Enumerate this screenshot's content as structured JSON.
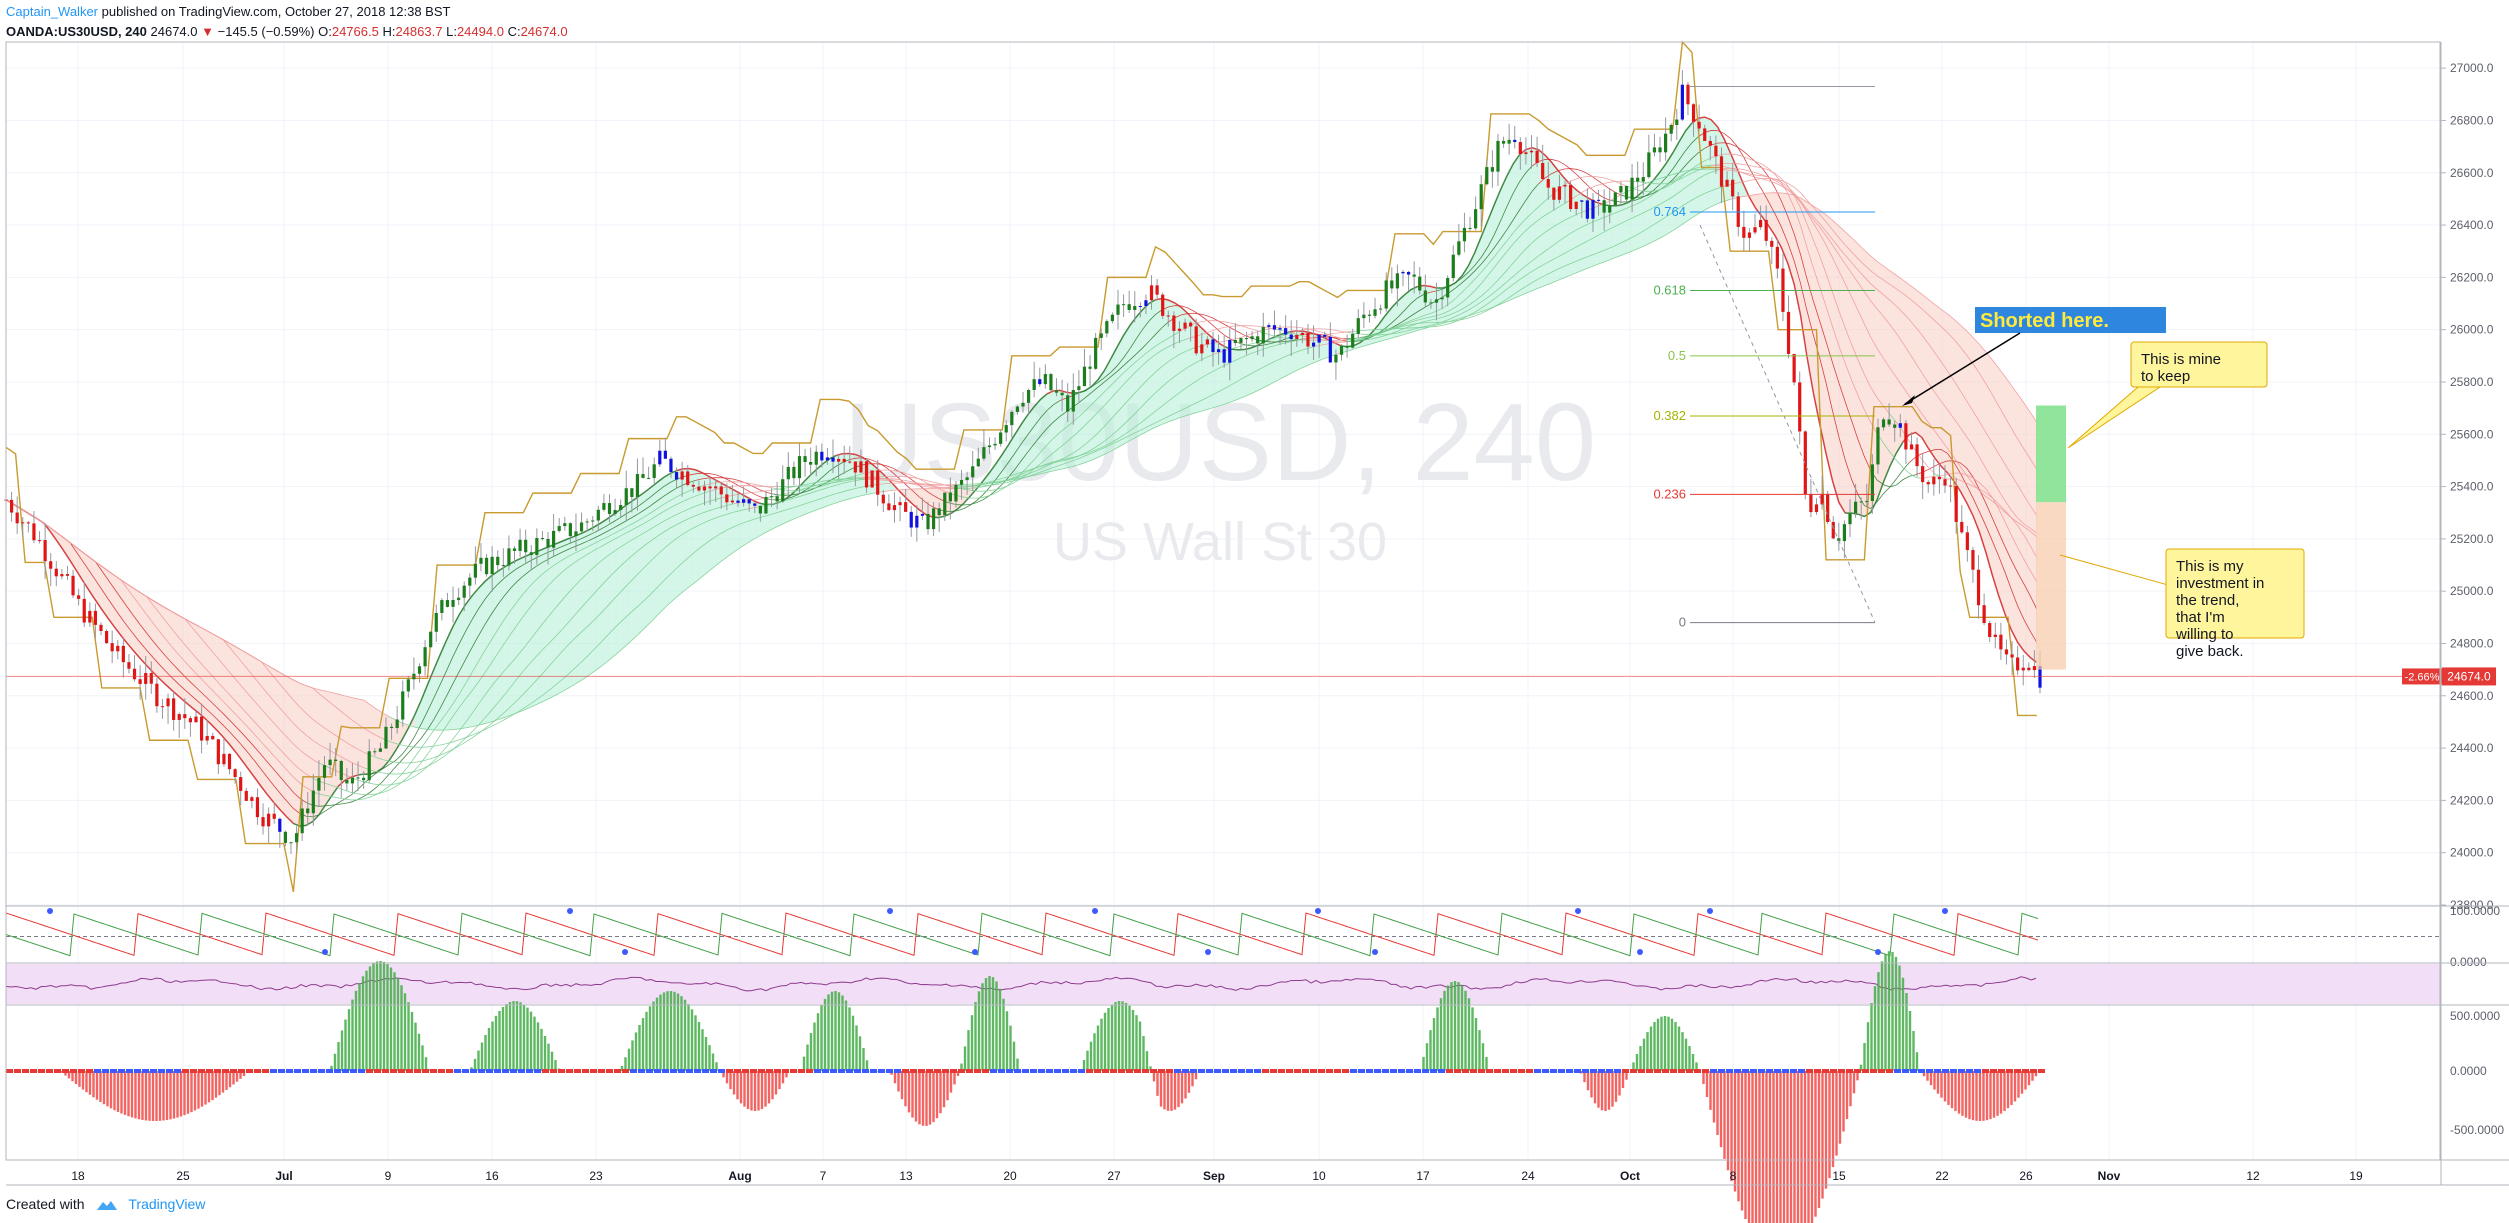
{
  "header": {
    "author": "Captain_Walker",
    "published": "published on TradingView.com, October 27, 2018 12:38 BST",
    "symbol": "OANDA:US30USD, 240",
    "last": "24674.0",
    "change": "−145.5 (−0.59%)",
    "o_label": "O:",
    "o_value": "24766.5",
    "h_label": "H:",
    "h_value": "24863.7",
    "l_label": "L:",
    "l_value": "24494.0",
    "c_label": "C:",
    "c_value": "24674.0"
  },
  "footer": {
    "created_with": "Created with",
    "brand": "TradingView"
  },
  "watermark": {
    "line1": "US30USD, 240",
    "line2": "US Wall St 30"
  },
  "chart_data": {
    "type": "candlestick",
    "ylim": [
      23800,
      27100
    ],
    "y_ticks": [
      23800,
      24000,
      24200,
      24400,
      24600,
      24800,
      25000,
      25200,
      25400,
      25600,
      25800,
      26000,
      26200,
      26400,
      26600,
      26800,
      27000
    ],
    "y_tick_labels": [
      "23800.0",
      "24000.0",
      "24200.0",
      "24400.0",
      "24600.0",
      "24800.0",
      "25000.0",
      "25200.0",
      "25400.0",
      "25600.0",
      "25800.0",
      "26000.0",
      "26200.0",
      "26400.0",
      "26600.0",
      "26800.0",
      "27000.0"
    ],
    "x_ticks": [
      {
        "label": "18",
        "bold": false
      },
      {
        "label": "25",
        "bold": false
      },
      {
        "label": "Jul",
        "bold": true
      },
      {
        "label": "9",
        "bold": false
      },
      {
        "label": "16",
        "bold": false
      },
      {
        "label": "23",
        "bold": false
      },
      {
        "label": "Aug",
        "bold": true
      },
      {
        "label": "7",
        "bold": false
      },
      {
        "label": "13",
        "bold": false
      },
      {
        "label": "20",
        "bold": false
      },
      {
        "label": "27",
        "bold": false
      },
      {
        "label": "Sep",
        "bold": true
      },
      {
        "label": "10",
        "bold": false
      },
      {
        "label": "17",
        "bold": false
      },
      {
        "label": "24",
        "bold": false
      },
      {
        "label": "Oct",
        "bold": true
      },
      {
        "label": "8",
        "bold": false
      },
      {
        "label": "15",
        "bold": false
      },
      {
        "label": "22",
        "bold": false
      },
      {
        "label": "26",
        "bold": false
      },
      {
        "label": "Nov",
        "bold": true
      },
      {
        "label": "12",
        "bold": false
      },
      {
        "label": "19",
        "bold": false
      }
    ],
    "price_path": [
      [
        0,
        25350
      ],
      [
        20,
        25200
      ],
      [
        45,
        24950
      ],
      [
        70,
        24750
      ],
      [
        95,
        24600
      ],
      [
        120,
        24480
      ],
      [
        140,
        24320
      ],
      [
        160,
        24150
      ],
      [
        180,
        24050
      ],
      [
        200,
        24350
      ],
      [
        215,
        24250
      ],
      [
        235,
        24400
      ],
      [
        250,
        24600
      ],
      [
        265,
        24850
      ],
      [
        280,
        25000
      ],
      [
        300,
        25100
      ],
      [
        320,
        25150
      ],
      [
        340,
        25200
      ],
      [
        360,
        25250
      ],
      [
        380,
        25350
      ],
      [
        395,
        25400
      ],
      [
        410,
        25500
      ],
      [
        425,
        25450
      ],
      [
        440,
        25400
      ],
      [
        455,
        25350
      ],
      [
        470,
        25300
      ],
      [
        485,
        25400
      ],
      [
        500,
        25500
      ],
      [
        515,
        25550
      ],
      [
        530,
        25500
      ],
      [
        545,
        25400
      ],
      [
        560,
        25300
      ],
      [
        575,
        25250
      ],
      [
        590,
        25350
      ],
      [
        605,
        25450
      ],
      [
        620,
        25600
      ],
      [
        635,
        25750
      ],
      [
        650,
        25800
      ],
      [
        665,
        25700
      ],
      [
        680,
        25900
      ],
      [
        700,
        26100
      ],
      [
        715,
        26150
      ],
      [
        730,
        26050
      ],
      [
        745,
        25950
      ],
      [
        760,
        25900
      ],
      [
        775,
        25950
      ],
      [
        790,
        26000
      ],
      [
        805,
        26000
      ],
      [
        820,
        25950
      ],
      [
        835,
        25900
      ],
      [
        850,
        26050
      ],
      [
        865,
        26150
      ],
      [
        880,
        26200
      ],
      [
        895,
        26100
      ],
      [
        905,
        26250
      ],
      [
        915,
        26400
      ],
      [
        925,
        26550
      ],
      [
        935,
        26700
      ],
      [
        945,
        26750
      ],
      [
        955,
        26650
      ],
      [
        965,
        26550
      ],
      [
        980,
        26500
      ],
      [
        995,
        26450
      ],
      [
        1010,
        26500
      ],
      [
        1025,
        26600
      ],
      [
        1040,
        26750
      ],
      [
        1050,
        26900
      ],
      [
        1060,
        26800
      ],
      [
        1070,
        26650
      ],
      [
        1080,
        26500
      ],
      [
        1090,
        26350
      ],
      [
        1100,
        26400
      ],
      [
        1110,
        26200
      ],
      [
        1120,
        25800
      ],
      [
        1128,
        25300
      ],
      [
        1136,
        25400
      ],
      [
        1146,
        25200
      ],
      [
        1156,
        25300
      ],
      [
        1166,
        25350
      ],
      [
        1175,
        25700
      ],
      [
        1185,
        25650
      ],
      [
        1195,
        25500
      ],
      [
        1205,
        25400
      ],
      [
        1215,
        25450
      ],
      [
        1225,
        25200
      ],
      [
        1235,
        25000
      ],
      [
        1245,
        24800
      ],
      [
        1255,
        24700
      ],
      [
        1265,
        24750
      ],
      [
        1274,
        24674
      ]
    ],
    "fib_levels": [
      {
        "label": "0.764",
        "price": 26450,
        "color": "#2196f3"
      },
      {
        "label": "0.618",
        "price": 26150,
        "color": "#4caf50"
      },
      {
        "label": "0.5",
        "price": 25900,
        "color": "#8bc34a"
      },
      {
        "label": "0.382",
        "price": 25670,
        "color": "#a5b300"
      },
      {
        "label": "0.236",
        "price": 25370,
        "color": "#e53935"
      },
      {
        "label": "0",
        "price": 24880,
        "color": "#787b86"
      }
    ],
    "current_price": {
      "label": "24674.0",
      "pct": "-2.66%",
      "price": 24674
    },
    "annotations": [
      {
        "text": "Shorted here.",
        "style": "blue"
      },
      {
        "text": "This is mine to keep",
        "style": "yellow"
      },
      {
        "text": "This is my investment in the trend, that I'm willing to give back.",
        "style": "yellow"
      }
    ],
    "oscillator_ticks": [
      "100.0000",
      "0.0000"
    ],
    "histogram_ticks": [
      "500.0000",
      "0.0000",
      "-500.0000"
    ],
    "colors": {
      "up": "#1b7d1b",
      "down": "#e01515",
      "neutral": "#1010e0",
      "stop": "#c99a2e",
      "fib_box_green": "#7de08a",
      "fib_box_peach": "#f8c9aa",
      "rsi_bg": "#f3def7",
      "rsi_line": "#8e3a8e"
    }
  }
}
